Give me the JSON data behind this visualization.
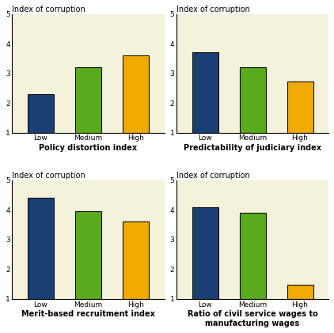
{
  "charts": [
    {
      "title": "Index of corruption",
      "xlabel": "Policy distortion index",
      "categories": [
        "Low",
        "Medium",
        "High"
      ],
      "values": [
        2.3,
        3.2,
        3.6
      ],
      "colors": [
        "#1a4072",
        "#5aaa1e",
        "#f0aa00"
      ]
    },
    {
      "title": "Index of corruption",
      "xlabel": "Predictability of judiciary index",
      "categories": [
        "Low",
        "Medium",
        "High"
      ],
      "values": [
        3.72,
        3.2,
        2.72
      ],
      "colors": [
        "#1a4072",
        "#5aaa1e",
        "#f0aa00"
      ]
    },
    {
      "title": "Index of corruption",
      "xlabel": "Merit-based recruitment index",
      "categories": [
        "Low",
        "Medium",
        "High"
      ],
      "values": [
        4.4,
        3.95,
        3.62
      ],
      "colors": [
        "#1a4072",
        "#5aaa1e",
        "#f0aa00"
      ]
    },
    {
      "title": "Index of corruption",
      "xlabel": "Ratio of civil service wages to\nmanufacturing wages",
      "categories": [
        "Low",
        "Medium",
        "High"
      ],
      "values": [
        4.1,
        3.9,
        1.47
      ],
      "colors": [
        "#1a4072",
        "#5aaa1e",
        "#f0aa00"
      ]
    }
  ],
  "ylim": [
    1,
    5
  ],
  "ymin": 1,
  "yticks": [
    1,
    2,
    3,
    4,
    5
  ],
  "bg_color": "#f5f2dc",
  "bar_edge_color": "#111111",
  "bar_width": 0.55
}
